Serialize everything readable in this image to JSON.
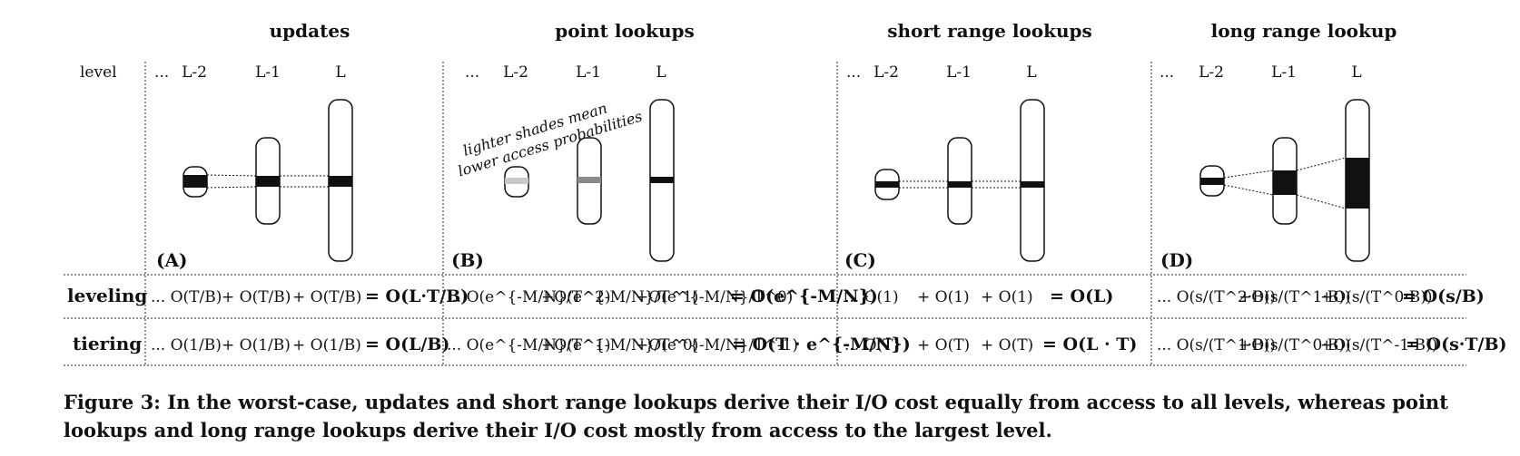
{
  "header": {
    "level_label": "level",
    "columns": [
      "updates",
      "point lookups",
      "short range lookups",
      "long range lookup"
    ]
  },
  "panels": [
    {
      "letter": "(A)",
      "levels": [
        "...",
        "L-2",
        "L-1",
        "L"
      ]
    },
    {
      "letter": "(B)",
      "levels": [
        "...",
        "L-2",
        "L-1",
        "L"
      ],
      "note": [
        "lighter shades mean",
        "lower access probabilities"
      ]
    },
    {
      "letter": "(C)",
      "levels": [
        "...",
        "L-2",
        "L-1",
        "L"
      ]
    },
    {
      "letter": "(D)",
      "levels": [
        "...",
        "L-2",
        "L-1",
        "L"
      ]
    }
  ],
  "rows": {
    "leveling": {
      "label": "leveling",
      "cells": [
        {
          "terms": [
            "... O(T/B)",
            "+ O(T/B)",
            "+ O(T/B)"
          ],
          "total": "= O(L·T/B)"
        },
        {
          "terms": [
            "... O(e^{-M/N}/T^2)",
            "+O(e^{-M/N}/T^1)",
            "+O(e^{-M/N}/T^0)"
          ],
          "total": "= O(e^{-M/N})"
        },
        {
          "terms": [
            "... O(1)",
            "+ O(1)",
            "+ O(1)"
          ],
          "total": "= O(L)"
        },
        {
          "terms": [
            "... O(s/(T^2·B))",
            "+O(s/(T^1·B))",
            "+O(s/(T^0·B))"
          ],
          "total": "= O(s/B)"
        }
      ]
    },
    "tiering": {
      "label": "tiering",
      "cells": [
        {
          "terms": [
            "... O(1/B)",
            "+ O(1/B)",
            "+ O(1/B)"
          ],
          "total": "= O(L/B)"
        },
        {
          "terms": [
            "... O(e^{-M/N}/T^1)",
            "+O(e^{-M/N}/T^0)",
            "+O(e^{-M/N}/T^-1)"
          ],
          "total": "= O(T · e^{-M/N})"
        },
        {
          "terms": [
            "... O(T)",
            "+ O(T)",
            "+ O(T)"
          ],
          "total": "= O(L · T)"
        },
        {
          "terms": [
            "... O(s/(T^1·B))",
            "+O(s/(T^0·B))",
            "+O(s/(T^-1·B))"
          ],
          "total": "= O(s·T/B)"
        }
      ]
    }
  },
  "caption": "Figure 3: In the worst-case, updates and short range lookups derive their I/O cost equally from access to all levels, whereas point lookups and long range lookups derive their I/O cost mostly from access to the largest level."
}
